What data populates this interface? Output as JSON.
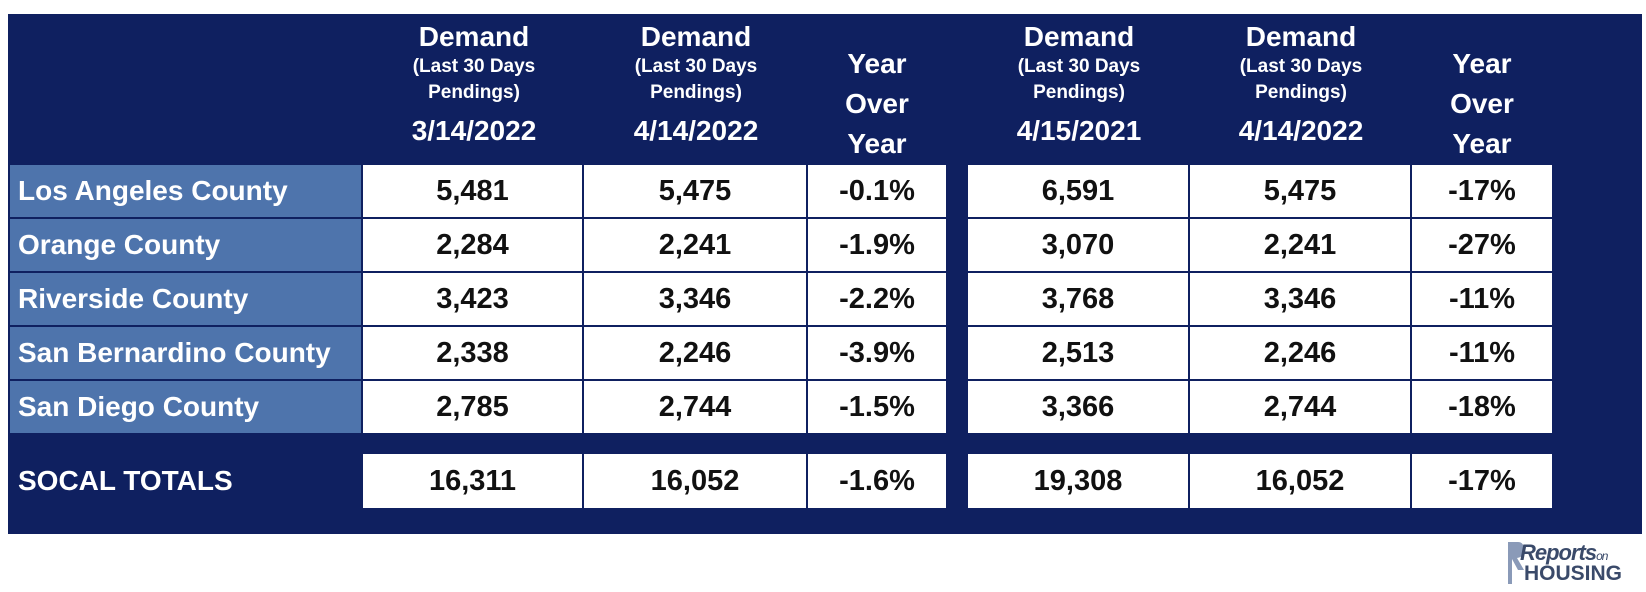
{
  "headers": {
    "col1": {
      "title": "Demand",
      "sub1": "(Last 30 Days",
      "sub2": "Pendings)",
      "date": "3/14/2022"
    },
    "col2": {
      "title": "Demand",
      "sub1": "(Last 30 Days",
      "sub2": "Pendings)",
      "date": "4/14/2022"
    },
    "col3": {
      "l1": "Year",
      "l2": "Over",
      "l3": "Year"
    },
    "col4": {
      "title": "Demand",
      "sub1": "(Last 30 Days",
      "sub2": "Pendings)",
      "date": "4/15/2021"
    },
    "col5": {
      "title": "Demand",
      "sub1": "(Last 30 Days",
      "sub2": "Pendings)",
      "date": "4/14/2022"
    },
    "col6": {
      "l1": "Year",
      "l2": "Over",
      "l3": "Year"
    }
  },
  "rows": [
    {
      "label": "Los Angeles County",
      "v": [
        "5,481",
        "5,475",
        "-0.1%",
        "6,591",
        "5,475",
        "-17%"
      ]
    },
    {
      "label": "Orange County",
      "v": [
        "2,284",
        "2,241",
        "-1.9%",
        "3,070",
        "2,241",
        "-27%"
      ]
    },
    {
      "label": "Riverside County",
      "v": [
        "3,423",
        "3,346",
        "-2.2%",
        "3,768",
        "3,346",
        "-11%"
      ]
    },
    {
      "label": "San Bernardino County",
      "v": [
        "2,338",
        "2,246",
        "-3.9%",
        "2,513",
        "2,246",
        "-11%"
      ]
    },
    {
      "label": "San Diego County",
      "v": [
        "2,785",
        "2,744",
        "-1.5%",
        "3,366",
        "2,744",
        "-18%"
      ]
    }
  ],
  "totals": {
    "label": "SOCAL TOTALS",
    "v": [
      "16,311",
      "16,052",
      "-1.6%",
      "19,308",
      "16,052",
      "-17%"
    ]
  },
  "logo": {
    "line1": "Reports",
    "line1_small": "on",
    "line2": "HOUSING"
  }
}
